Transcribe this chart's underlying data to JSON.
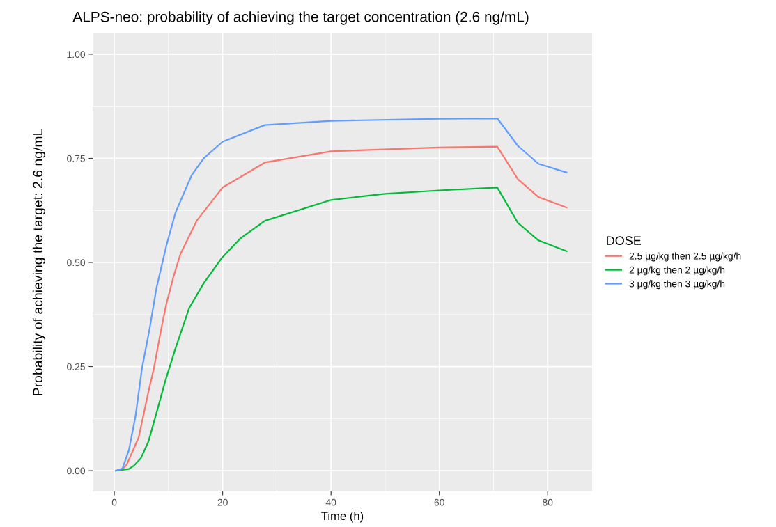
{
  "chart_data": {
    "type": "line",
    "title": "ALPS-neo: probability of achieving the target concentration (2.6 ng/mL)",
    "xlabel": "Time (h)",
    "ylabel": "Probability of achieving the target: 2.6 ng/mL",
    "legend_title": "DOSE",
    "legend": "right",
    "grid": true,
    "xlim": [
      -4.0,
      88.2
    ],
    "xticks": [
      0,
      20,
      40,
      60,
      80
    ],
    "ylim": [
      -0.05,
      1.05
    ],
    "yticks": [
      {
        "value": 0,
        "label": "0.00"
      },
      {
        "value": 0.25,
        "label": "0.25"
      },
      {
        "value": 0.5,
        "label": "0.50"
      },
      {
        "value": 0.75,
        "label": "0.75"
      },
      {
        "value": 1,
        "label": "1.00"
      }
    ],
    "series": [
      {
        "name": "2.5 µg/kg then 2.5 µg/kg/h",
        "color": "#f8766d",
        "x": [
          0.3,
          1.5,
          2.3,
          4.5,
          6.3,
          7.3,
          8.5,
          9.6,
          10.9,
          12.2,
          15.2,
          20,
          27.8,
          40,
          60,
          70.7,
          74.5,
          78.3,
          83.5
        ],
        "values": [
          0,
          0.003,
          0.015,
          0.08,
          0.19,
          0.245,
          0.33,
          0.4,
          0.465,
          0.52,
          0.6,
          0.68,
          0.74,
          0.767,
          0.776,
          0.778,
          0.7,
          0.657,
          0.632
        ]
      },
      {
        "name": "2 µg/kg then 2 µg/kg/h",
        "color": "#00ba38",
        "x": [
          0.3,
          2.7,
          3.6,
          4.9,
          6.3,
          7.6,
          9.4,
          11.2,
          13.8,
          16.5,
          19.8,
          23.2,
          27.8,
          40,
          50,
          60,
          70.7,
          74.5,
          78.3,
          83.5
        ],
        "values": [
          0,
          0.004,
          0.012,
          0.03,
          0.07,
          0.13,
          0.215,
          0.29,
          0.39,
          0.45,
          0.51,
          0.557,
          0.6,
          0.65,
          0.665,
          0.673,
          0.68,
          0.595,
          0.553,
          0.527
        ]
      },
      {
        "name": "3 µg/kg then 3 µg/kg/h",
        "color": "#619cff",
        "x": [
          0.3,
          1.5,
          2.7,
          3.9,
          5.1,
          6.5,
          7.8,
          9.6,
          11.3,
          14.3,
          16.5,
          20,
          27.8,
          40,
          60,
          70.7,
          74.5,
          78.3,
          83.5
        ],
        "values": [
          0,
          0.005,
          0.05,
          0.13,
          0.245,
          0.34,
          0.44,
          0.54,
          0.62,
          0.71,
          0.75,
          0.79,
          0.83,
          0.84,
          0.845,
          0.846,
          0.78,
          0.737,
          0.716
        ]
      }
    ]
  }
}
